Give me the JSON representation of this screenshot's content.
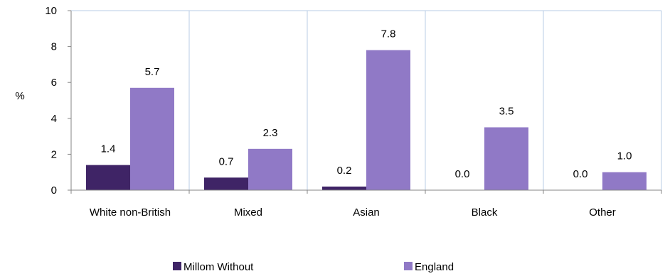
{
  "chart_data": {
    "type": "bar",
    "categories": [
      "White non-British",
      "Mixed",
      "Asian",
      "Black",
      "Other"
    ],
    "series": [
      {
        "name": "Millom Without",
        "values": [
          1.4,
          0.7,
          0.2,
          0.0,
          0.0
        ],
        "labels": [
          "1.4",
          "0.7",
          "0.2",
          "0.0",
          "0.0"
        ],
        "color": "#3f2466"
      },
      {
        "name": "England",
        "values": [
          5.7,
          2.3,
          7.8,
          3.5,
          1.0
        ],
        "labels": [
          "5.7",
          "2.3",
          "7.8",
          "3.5",
          "1.0"
        ],
        "color": "#9079c6"
      }
    ],
    "ylabel": "%",
    "ylim": [
      0,
      10
    ],
    "yticks": [
      "0",
      "2",
      "4",
      "6",
      "8",
      "10"
    ],
    "grid": true,
    "legend_position": "bottom",
    "colors": {
      "grid": "#b8cce4",
      "axis": "#868686"
    }
  }
}
